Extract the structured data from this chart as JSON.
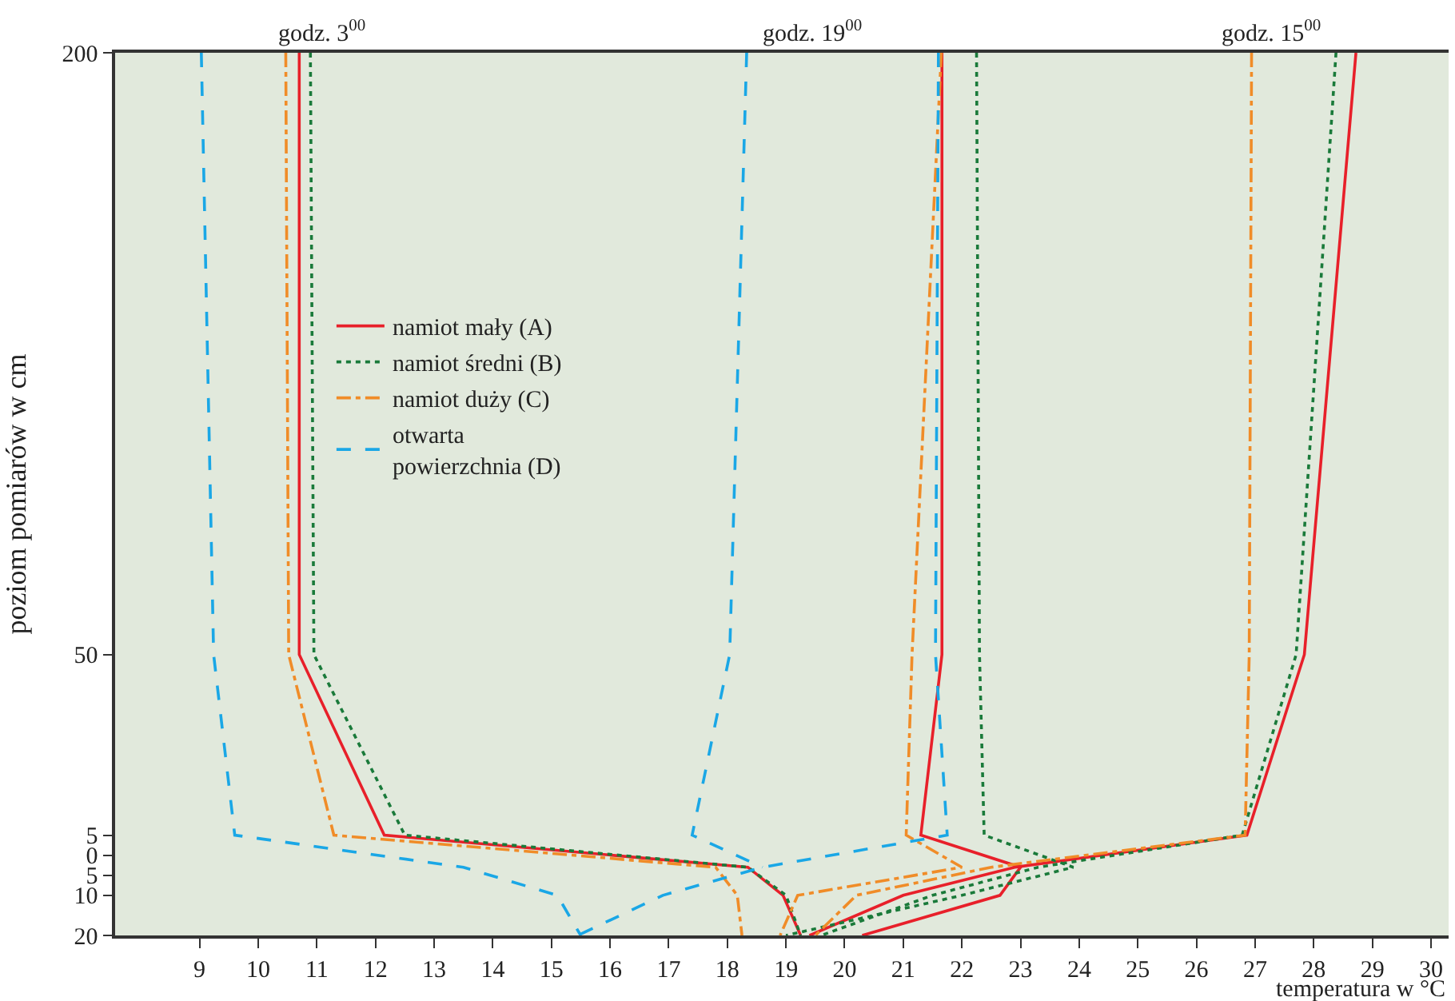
{
  "chart_data": {
    "type": "line",
    "xlabel": "temperatura w °C",
    "ylabel": "poziom pomiarów w cm",
    "annotations": [
      "godz. 3$^{00}$",
      "godz. 19$^{00}$",
      "godz. 15$^{00}$"
    ],
    "series": [
      {
        "name": "namiot mały (A)",
        "color": "#e8202a",
        "line_style": "solid",
        "x": [
          10.7,
          10.7,
          12.15,
          18.35,
          18.95,
          19.25,
          null,
          21.66,
          21.66,
          21.3,
          23.0,
          22.65,
          20.3,
          null,
          28.72,
          27.84,
          26.86,
          22.9,
          21.0,
          19.4
        ],
        "values": [
          200,
          50,
          5,
          -3,
          -10,
          -20,
          null,
          200,
          50,
          5,
          -3,
          -10,
          -20,
          null,
          200,
          50,
          5,
          -3,
          -10,
          -20
        ]
      },
      {
        "name": "namiot średni (B)",
        "color": "#1a7a3a",
        "line_style": "dotted",
        "x": [
          10.89,
          10.95,
          12.5,
          18.35,
          19.0,
          19.25,
          null,
          22.25,
          22.3,
          22.38,
          23.9,
          22.0,
          19.0,
          null,
          28.38,
          27.7,
          26.78,
          23.3,
          21.5,
          19.6
        ],
        "values": [
          200,
          50,
          5,
          -3,
          -10,
          -20,
          null,
          200,
          50,
          5,
          -3,
          -10,
          -20,
          null,
          200,
          50,
          5,
          -3,
          -10,
          -20
        ]
      },
      {
        "name": "namiot duży (C)",
        "color": "#f08c28",
        "line_style": "dashdot",
        "x": [
          10.47,
          10.52,
          11.29,
          17.8,
          18.17,
          18.25,
          null,
          21.65,
          21.15,
          21.05,
          22.0,
          19.2,
          18.9,
          null,
          26.94,
          26.9,
          26.83,
          22.5,
          20.2,
          19.5
        ],
        "values": [
          200,
          50,
          5,
          -3,
          -10,
          -20,
          null,
          200,
          50,
          5,
          -3,
          -10,
          -20,
          null,
          200,
          50,
          5,
          -3,
          -10,
          -20
        ]
      },
      {
        "name": "otwarta\npowierzchnia (D)",
        "color": "#1aa7e6",
        "line_style": "dashed",
        "x": [
          9.03,
          9.24,
          9.6,
          13.5,
          15.1,
          15.5,
          null,
          18.33,
          18.04,
          17.4,
          18.6,
          null,
          21.6,
          21.55,
          21.75,
          18.6,
          16.9,
          15.45
        ],
        "values": [
          200,
          50,
          5,
          -3,
          -10,
          -20,
          null,
          200,
          50,
          5,
          -3,
          null,
          200,
          50,
          5,
          -3,
          -10,
          -20
        ]
      }
    ],
    "xlim": [
      7.56,
      30.3
    ],
    "xticks": [
      9,
      10,
      11,
      12,
      13,
      14,
      15,
      16,
      17,
      18,
      19,
      20,
      21,
      22,
      23,
      24,
      25,
      26,
      27,
      28,
      29,
      30
    ],
    "ylim": [
      -20,
      200
    ],
    "yticks": [
      {
        "value": -20,
        "label": "20"
      },
      {
        "value": -10,
        "label": "10"
      },
      {
        "value": -5,
        "label": "5"
      },
      0,
      5,
      50,
      200
    ],
    "grid": false,
    "legend": "left",
    "marker": "none"
  }
}
